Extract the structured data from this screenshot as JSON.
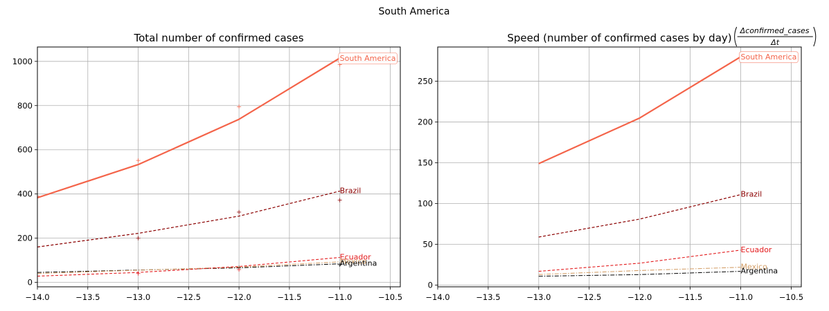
{
  "figure": {
    "title": "South America"
  },
  "chart_data": [
    {
      "type": "line",
      "title": "Total number of confirmed cases",
      "xlim": [
        -14.0,
        -10.4
      ],
      "ylim": [
        -20,
        1065
      ],
      "xticks": [
        -14.0,
        -13.5,
        -13.0,
        -12.5,
        -12.0,
        -11.5,
        -11.0,
        -10.5
      ],
      "xtick_labels": [
        "−14.0",
        "−13.5",
        "−13.0",
        "−12.5",
        "−12.0",
        "−11.5",
        "−11.0",
        "−10.5"
      ],
      "yticks": [
        0,
        200,
        400,
        600,
        800,
        1000
      ],
      "ytick_labels": [
        "0",
        "200",
        "400",
        "600",
        "800",
        "1000"
      ],
      "grid": true,
      "series": [
        {
          "name": "South America",
          "color": "#f4644a",
          "style": "solid",
          "width": 2.2,
          "x": [
            -14,
            -13,
            -12,
            -11
          ],
          "y": [
            383,
            533,
            738,
            1015
          ],
          "markers_x": [
            -14,
            -13,
            -12,
            -11
          ],
          "markers_y": [
            390,
            552,
            795,
            985
          ],
          "label_boxed": true
        },
        {
          "name": "Brazil",
          "color": "#8b0000",
          "style": "dashed",
          "width": 1.2,
          "x": [
            -14,
            -13,
            -12,
            -11
          ],
          "y": [
            160,
            222,
            300,
            413
          ],
          "markers_x": [
            -13,
            -12,
            -11
          ],
          "markers_y": [
            200,
            318,
            372
          ]
        },
        {
          "name": "Ecuador",
          "color": "#e31a1c",
          "style": "dashed",
          "width": 1.1,
          "x": [
            -14,
            -13,
            -12,
            -11
          ],
          "y": [
            28,
            45,
            72,
            113
          ],
          "markers_x": [
            -13,
            -12
          ],
          "markers_y": [
            40,
            58
          ]
        },
        {
          "name": "Mexico",
          "color": "#d4a06a",
          "style": "dashdot",
          "width": 1.1,
          "x": [
            -14,
            -13,
            -12,
            -11
          ],
          "y": [
            40,
            55,
            69,
            93
          ],
          "markers_x": [],
          "markers_y": []
        },
        {
          "name": "Argentina",
          "color": "#000000",
          "style": "dashdot",
          "width": 1.0,
          "x": [
            -14,
            -13,
            -12,
            -11
          ],
          "y": [
            45,
            56,
            66,
            84
          ],
          "markers_x": [
            -12,
            -11
          ],
          "markers_y": [
            66,
            80
          ]
        }
      ]
    },
    {
      "type": "line",
      "title": "Speed (number of confirmed cases by day)",
      "title_fraction": {
        "numerator": "Δconfirmed_cases",
        "denominator": "Δt"
      },
      "xlim": [
        -14.0,
        -10.4
      ],
      "ylim": [
        -2,
        292
      ],
      "xticks": [
        -14.0,
        -13.5,
        -13.0,
        -12.5,
        -12.0,
        -11.5,
        -11.0,
        -10.5
      ],
      "xtick_labels": [
        "−14.0",
        "−13.5",
        "−13.0",
        "−12.5",
        "−12.0",
        "−11.5",
        "−11.0",
        "−10.5"
      ],
      "yticks": [
        0,
        50,
        100,
        150,
        200,
        250
      ],
      "ytick_labels": [
        "0",
        "50",
        "100",
        "150",
        "200",
        "250"
      ],
      "grid": true,
      "series": [
        {
          "name": "South America",
          "color": "#f4644a",
          "style": "solid",
          "width": 2.2,
          "x": [
            -13,
            -12,
            -11
          ],
          "y": [
            149,
            205,
            280
          ],
          "label_boxed": true
        },
        {
          "name": "Brazil",
          "color": "#8b0000",
          "style": "dashed",
          "width": 1.2,
          "x": [
            -13,
            -12,
            -11
          ],
          "y": [
            59,
            81,
            111
          ]
        },
        {
          "name": "Ecuador",
          "color": "#e31a1c",
          "style": "dashed",
          "width": 1.1,
          "x": [
            -13,
            -12,
            -11
          ],
          "y": [
            17,
            27,
            43
          ]
        },
        {
          "name": "Mexico",
          "color": "#d4a06a",
          "style": "dashdot",
          "width": 1.1,
          "x": [
            -13,
            -12,
            -11
          ],
          "y": [
            13,
            18,
            22
          ]
        },
        {
          "name": "Argentina",
          "color": "#000000",
          "style": "dashdot",
          "width": 1.0,
          "x": [
            -13,
            -12,
            -11
          ],
          "y": [
            11,
            13,
            17
          ]
        }
      ]
    }
  ]
}
